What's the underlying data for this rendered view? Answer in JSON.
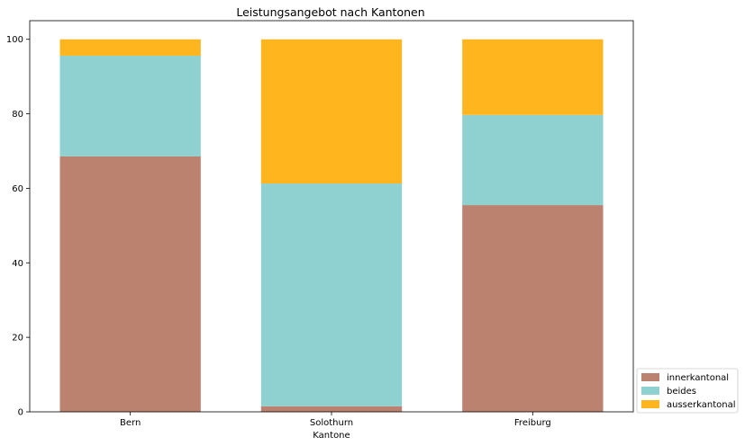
{
  "chart_data": {
    "type": "bar",
    "stacked": true,
    "title": "Leistungsangebot nach Kantonen",
    "xlabel": "Kantone",
    "ylabel": "",
    "categories": [
      "Bern",
      "Solothurn",
      "Freiburg"
    ],
    "series": [
      {
        "name": "innerkantonal",
        "color": "#bc8270",
        "values": [
          68.6,
          1.5,
          55.5
        ]
      },
      {
        "name": "beides",
        "color": "#8fd1d1",
        "values": [
          27.0,
          59.8,
          24.2
        ]
      },
      {
        "name": "ausserkantonal",
        "color": "#ffb51d",
        "values": [
          4.4,
          38.7,
          20.3
        ]
      }
    ],
    "ylim": [
      0,
      105
    ],
    "yticks": [
      0,
      20,
      40,
      60,
      80,
      100
    ],
    "grid": false,
    "legend_position": "lower-right-outside"
  }
}
